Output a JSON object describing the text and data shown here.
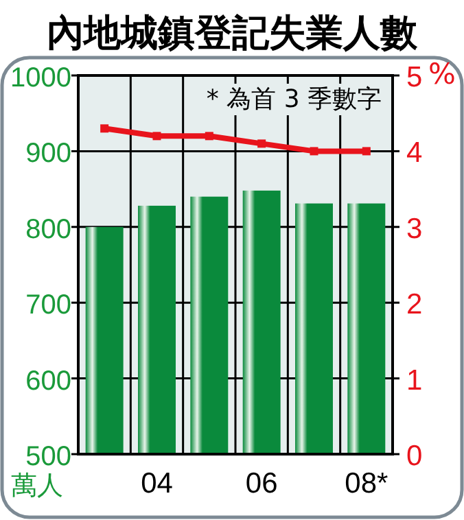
{
  "chart_data": {
    "type": "bar",
    "title": "內地城鎮登記失業人數",
    "categories": [
      null,
      "04",
      null,
      "06",
      null,
      "08*"
    ],
    "series": [
      {
        "color": "#0a8a3c",
        "values": [
          800,
          828,
          840,
          848,
          831,
          831
        ]
      },
      {
        "type": "line",
        "axis": "y2",
        "color": "#e8141c",
        "marker": "square",
        "values": [
          4.3,
          4.2,
          4.2,
          4.1,
          4.0,
          4.0
        ]
      }
    ],
    "ylabel": "萬人",
    "y2label": "%",
    "ylim": [
      500,
      1000
    ],
    "yticks": [
      500,
      600,
      700,
      800,
      900,
      1000
    ],
    "y2lim": [
      0,
      5
    ],
    "y2ticks": [
      0,
      1,
      2,
      3,
      4,
      5
    ],
    "grid": true,
    "annotations": [
      "* 為首 3 季數字"
    ]
  }
}
